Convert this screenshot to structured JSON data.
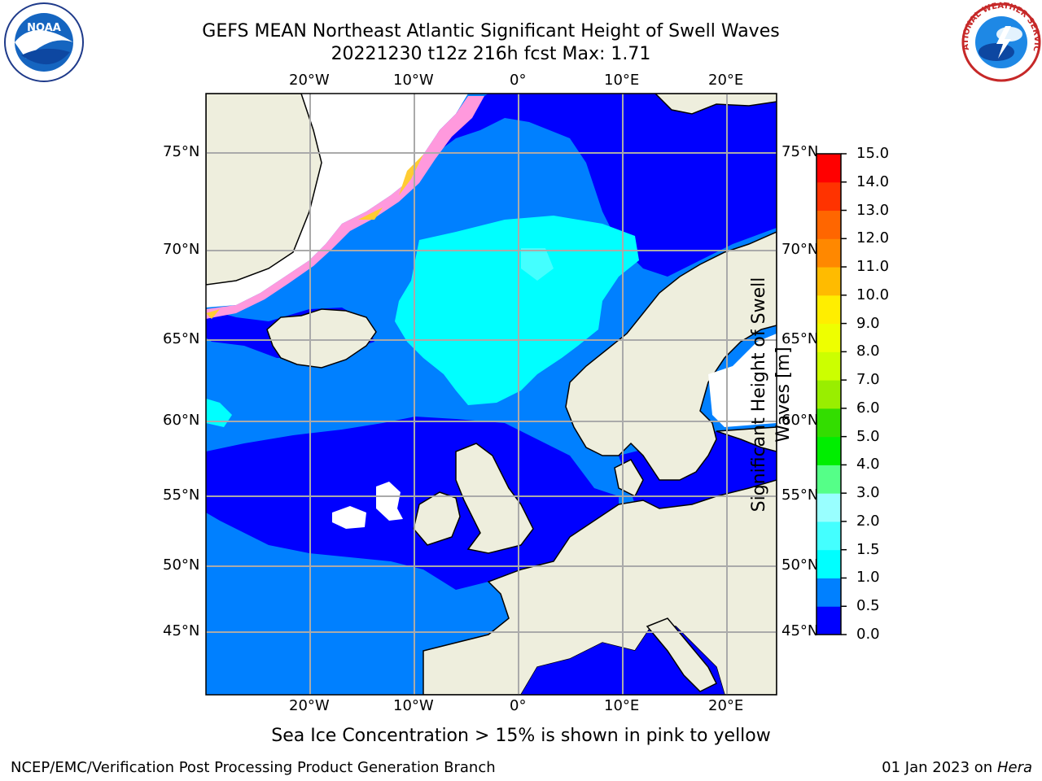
{
  "header": {
    "title_line1": "GEFS MEAN Northeast Atlantic Significant Height of Swell Waves",
    "title_line2": "20221230 t12z 216h fcst   Max: 1.71"
  },
  "logos": {
    "left": "noaa-logo",
    "right": "nws-logo",
    "left_text": "NOAA",
    "right_text": "NATIONAL WEATHER SERVICE"
  },
  "map": {
    "lon_labels": [
      "20°W",
      "10°W",
      "0°",
      "10°E",
      "20°E"
    ],
    "lat_labels": [
      "75°N",
      "70°N",
      "65°N",
      "60°N",
      "55°N",
      "50°N",
      "45°N"
    ],
    "colors": {
      "sea_low": "#0000ff",
      "sea_mid": "#0080ff",
      "sea_high": "#00ffff",
      "land": "#eeeedd",
      "no_data": "#ffffff",
      "gridline": "#aaaaaa",
      "ice_pink": "#ff33cc",
      "ice_yellow": "#ffcc33"
    }
  },
  "colorbar": {
    "label": "Significant Height of Swell Waves [m]",
    "ticks": [
      "0.0",
      "0.5",
      "1.0",
      "1.5",
      "2.0",
      "3.0",
      "4.0",
      "5.0",
      "6.0",
      "7.0",
      "8.0",
      "9.0",
      "10.0",
      "11.0",
      "12.0",
      "13.0",
      "14.0",
      "15.0"
    ],
    "colors": [
      "#0000ff",
      "#0080ff",
      "#00ffff",
      "#44ffff",
      "#99ffff",
      "#55ff88",
      "#00ee00",
      "#33dd00",
      "#99ee00",
      "#ccff00",
      "#eeff00",
      "#ffee00",
      "#ffbb00",
      "#ff8800",
      "#ff6600",
      "#ff3300",
      "#ff0000"
    ]
  },
  "footer": {
    "note": "Sea Ice Concentration > 15% is shown in pink to yellow",
    "credit": "NCEP/EMC/Verification Post Processing Product Generation Branch",
    "date_prefix": "01 Jan 2023 on ",
    "machine": "Hera"
  }
}
